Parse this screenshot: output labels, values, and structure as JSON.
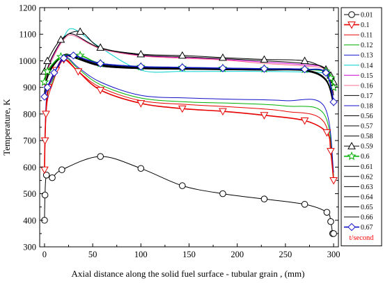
{
  "chart_data": {
    "type": "line",
    "title": "",
    "xlabel": "Axial distance along the solid fuel surface - tubular grain , (mm)",
    "ylabel": "Temperature, K",
    "xlim": [
      -5,
      305
    ],
    "ylim": [
      300,
      1200
    ],
    "xticks": [
      0,
      50,
      100,
      150,
      200,
      250,
      300
    ],
    "yticks": [
      300,
      400,
      500,
      600,
      700,
      800,
      900,
      1000,
      1100,
      1200
    ],
    "grid": false,
    "legend_position": "right-outside",
    "legend_unit_label": "t/second",
    "colors": {
      "black": "#000000",
      "red": "#e60000",
      "green": "#00b000",
      "blue": "#1010c8",
      "cyan": "#00d0d0",
      "magenta": "#d000d0",
      "pink": "#ff7090",
      "red_label": "#ff0000"
    },
    "series": [
      {
        "name": "0.01",
        "color": "#000000",
        "marker": "circle",
        "x": [
          0,
          0.5,
          2,
          8,
          18,
          58,
          100,
          143,
          185,
          228,
          270,
          293,
          297,
          299,
          300
        ],
        "y": [
          400,
          495,
          570,
          560,
          590,
          640,
          595,
          530,
          500,
          480,
          460,
          430,
          395,
          350,
          350
        ]
      },
      {
        "name": "0.1",
        "color": "#e60000",
        "marker": "triangle-down",
        "x": [
          0,
          0.5,
          1.5,
          4,
          12,
          20,
          35,
          58,
          100,
          143,
          185,
          228,
          270,
          293,
          297,
          300
        ],
        "y": [
          590,
          700,
          800,
          900,
          965,
          1005,
          960,
          890,
          840,
          820,
          810,
          795,
          775,
          730,
          660,
          550
        ]
      },
      {
        "name": "0.11",
        "color": "#e60000",
        "marker": "",
        "x": [
          0,
          2,
          8,
          20,
          35,
          58,
          100,
          150,
          200,
          250,
          290,
          300
        ],
        "y": [
          600,
          820,
          910,
          1005,
          960,
          900,
          850,
          835,
          825,
          810,
          770,
          560
        ]
      },
      {
        "name": "0.12",
        "color": "#00b000",
        "marker": "",
        "x": [
          0,
          2,
          8,
          20,
          35,
          58,
          100,
          150,
          200,
          250,
          290,
          300
        ],
        "y": [
          610,
          840,
          920,
          1010,
          970,
          910,
          860,
          845,
          840,
          830,
          800,
          570
        ]
      },
      {
        "name": "0.13",
        "color": "#1010c8",
        "marker": "",
        "x": [
          0,
          2,
          8,
          20,
          35,
          58,
          100,
          150,
          200,
          250,
          290,
          300
        ],
        "y": [
          620,
          860,
          930,
          1015,
          975,
          920,
          870,
          860,
          855,
          850,
          830,
          580
        ]
      },
      {
        "name": "0.14",
        "color": "#00d0d0",
        "marker": "",
        "x": [
          0,
          3,
          10,
          20,
          30,
          58,
          100,
          143,
          185,
          228,
          270,
          292,
          300
        ],
        "y": [
          900,
          960,
          1020,
          1090,
          1120,
          1050,
          965,
          960,
          960,
          960,
          958,
          950,
          900
        ]
      },
      {
        "name": "0.15",
        "color": "#d000d0",
        "marker": "",
        "x": [
          0,
          3,
          10,
          20,
          30,
          58,
          100,
          143,
          185,
          228,
          270,
          292,
          300
        ],
        "y": [
          900,
          965,
          1025,
          1085,
          1100,
          1045,
          1020,
          1012,
          1005,
          995,
          985,
          970,
          890
        ]
      },
      {
        "name": "0.16",
        "color": "#ff7090",
        "marker": "",
        "x": [
          0,
          3,
          10,
          20,
          30,
          58,
          100,
          143,
          185,
          228,
          270,
          292,
          300
        ],
        "y": [
          895,
          960,
          1020,
          1080,
          1095,
          1045,
          1018,
          1010,
          1003,
          990,
          980,
          965,
          880
        ]
      },
      {
        "name": "0.17",
        "color": "#000000",
        "marker": "",
        "x": [
          0,
          3,
          10,
          20,
          30,
          58,
          100,
          143,
          185,
          228,
          270,
          292,
          300
        ],
        "y": [
          910,
          970,
          1030,
          1085,
          1100,
          1048,
          1022,
          1015,
          1008,
          1000,
          990,
          968,
          870
        ]
      },
      {
        "name": "0.18",
        "color": "#1010c8",
        "marker": "",
        "x": [
          0,
          3,
          10,
          20,
          30,
          58,
          100,
          143,
          185,
          228,
          270,
          292,
          300
        ],
        "y": [
          880,
          940,
          985,
          1020,
          1015,
          980,
          972,
          970,
          968,
          966,
          965,
          930,
          830
        ]
      },
      {
        "name": "0.56",
        "color": "#000000",
        "marker": "",
        "x": [
          0,
          3,
          10,
          20,
          30,
          58,
          100,
          143,
          185,
          228,
          270,
          292,
          300
        ],
        "y": [
          880,
          945,
          990,
          1022,
          1018,
          985,
          975,
          972,
          970,
          968,
          966,
          930,
          840
        ]
      },
      {
        "name": "0.57",
        "color": "#000000",
        "marker": "",
        "x": [
          0,
          3,
          10,
          20,
          30,
          58,
          100,
          143,
          185,
          228,
          270,
          292,
          300
        ],
        "y": [
          870,
          935,
          985,
          1018,
          1012,
          980,
          970,
          968,
          966,
          965,
          962,
          925,
          830
        ]
      },
      {
        "name": "0.58",
        "color": "#000000",
        "marker": "",
        "x": [
          0,
          3,
          10,
          20,
          30,
          58,
          100,
          143,
          185,
          228,
          270,
          292,
          300
        ],
        "y": [
          875,
          940,
          988,
          1020,
          1015,
          982,
          972,
          970,
          968,
          966,
          964,
          928,
          835
        ]
      },
      {
        "name": "0.59",
        "color": "#000000",
        "marker": "triangle-up",
        "x": [
          0,
          3,
          17,
          37,
          58,
          100,
          143,
          185,
          228,
          270,
          292,
          297,
          300
        ],
        "y": [
          960,
          1000,
          1080,
          1110,
          1050,
          1025,
          1020,
          1012,
          1005,
          1000,
          968,
          945,
          920
        ]
      },
      {
        "name": "0.6",
        "color": "#00b000",
        "marker": "star",
        "x": [
          0,
          3,
          17,
          37,
          58,
          100,
          143,
          185,
          228,
          270,
          292,
          297,
          300
        ],
        "y": [
          920,
          960,
          1015,
          1020,
          990,
          978,
          975,
          972,
          970,
          968,
          960,
          935,
          900
        ]
      },
      {
        "name": "0.61",
        "color": "#000000",
        "marker": "",
        "x": [
          0,
          3,
          10,
          20,
          30,
          58,
          100,
          143,
          185,
          228,
          270,
          292,
          300
        ],
        "y": [
          878,
          942,
          989,
          1021,
          1016,
          983,
          973,
          971,
          969,
          967,
          965,
          929,
          838
        ]
      },
      {
        "name": "0.62",
        "color": "#000000",
        "marker": "",
        "x": [
          0,
          3,
          10,
          20,
          30,
          58,
          100,
          143,
          185,
          228,
          270,
          292,
          300
        ],
        "y": [
          872,
          938,
          986,
          1019,
          1014,
          981,
          971,
          969,
          967,
          965,
          963,
          926,
          832
        ]
      },
      {
        "name": "0.63",
        "color": "#000000",
        "marker": "",
        "x": [
          0,
          3,
          10,
          20,
          30,
          58,
          100,
          143,
          185,
          228,
          270,
          292,
          300
        ],
        "y": [
          882,
          946,
          991,
          1023,
          1019,
          986,
          976,
          973,
          971,
          969,
          967,
          931,
          842
        ]
      },
      {
        "name": "0.64",
        "color": "#000000",
        "marker": "",
        "x": [
          0,
          3,
          10,
          20,
          30,
          58,
          100,
          143,
          185,
          228,
          270,
          292,
          300
        ],
        "y": [
          876,
          941,
          987,
          1020,
          1015,
          982,
          972,
          970,
          968,
          966,
          964,
          928,
          836
        ]
      },
      {
        "name": "0.65",
        "color": "#000000",
        "marker": "",
        "x": [
          0,
          3,
          10,
          20,
          30,
          58,
          100,
          143,
          185,
          228,
          270,
          292,
          300
        ],
        "y": [
          879,
          943,
          989,
          1021,
          1017,
          984,
          974,
          971,
          969,
          967,
          965,
          930,
          839
        ]
      },
      {
        "name": "0.66",
        "color": "#000000",
        "marker": "",
        "x": [
          0,
          3,
          10,
          20,
          30,
          58,
          100,
          143,
          185,
          228,
          270,
          292,
          300
        ],
        "y": [
          874,
          939,
          986,
          1019,
          1014,
          981,
          971,
          969,
          967,
          965,
          963,
          927,
          834
        ]
      },
      {
        "name": "0.67",
        "color": "#1010c8",
        "marker": "diamond",
        "x": [
          0,
          3,
          10,
          20,
          30,
          58,
          100,
          143,
          185,
          228,
          270,
          292,
          300
        ],
        "y": [
          865,
          900,
          955,
          1010,
          1020,
          990,
          978,
          975,
          972,
          970,
          968,
          955,
          845
        ]
      }
    ]
  }
}
